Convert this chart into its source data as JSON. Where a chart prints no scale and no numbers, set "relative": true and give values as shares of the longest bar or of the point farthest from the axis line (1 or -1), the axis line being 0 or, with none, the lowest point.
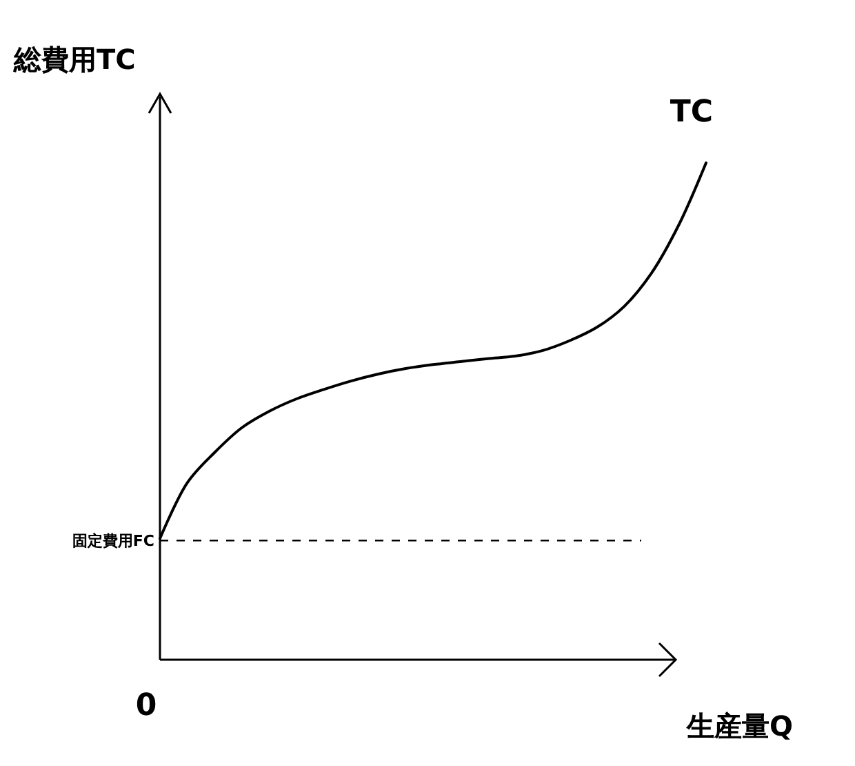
{
  "chart_data": {
    "type": "line",
    "relative": true,
    "ylabel": "総費用TC",
    "xlabel": "生産量Q",
    "marker": "none",
    "categories": [
      null,
      null,
      null,
      null,
      null,
      null,
      null,
      null,
      null,
      null,
      null,
      null,
      null,
      null,
      null,
      null,
      null,
      null,
      null,
      null,
      null
    ],
    "series": [
      {
        "name": "TC",
        "color": "#000000",
        "values": [
          0.244,
          0.356,
          0.417,
          0.467,
          0.5,
          0.525,
          0.544,
          0.561,
          0.575,
          0.586,
          0.594,
          0.6,
          0.606,
          0.611,
          0.622,
          0.642,
          0.669,
          0.711,
          0.778,
          0.875,
          1
        ]
      }
    ],
    "ref_lines": [
      {
        "axis": "y",
        "value": 0.24,
        "label": "固定費用FC",
        "line_style": "dashed",
        "color": "#000000"
      }
    ],
    "annotations": [
      "0"
    ]
  }
}
